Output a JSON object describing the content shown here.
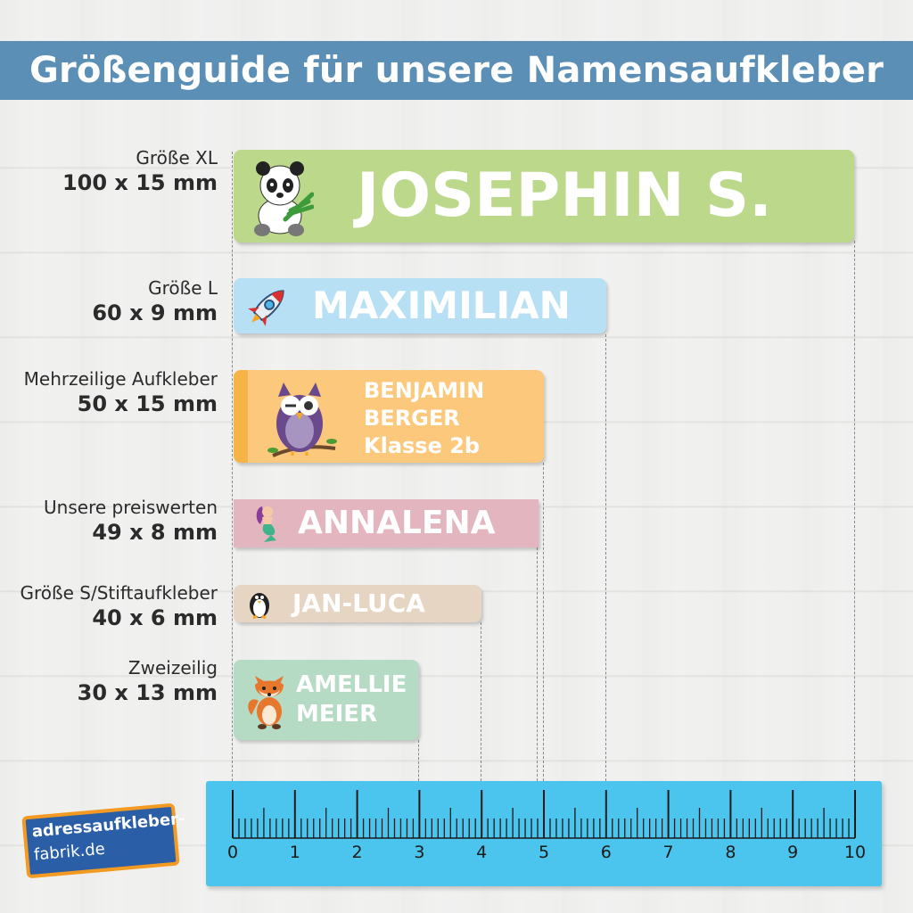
{
  "title": "Größenguide für unsere Namensaufkleber",
  "rows": [
    {
      "name": "Größe XL",
      "dims": "100 x 15 mm",
      "lines": [
        "JOSEPHIN S."
      ],
      "color": "#bcd88a",
      "icon": "panda-icon"
    },
    {
      "name": "Größe L",
      "dims": "60 x 9 mm",
      "lines": [
        "MAXIMILIAN"
      ],
      "color": "#b7e0f5",
      "icon": "rocket-icon"
    },
    {
      "name": "Mehrzeilige Aufkleber",
      "dims": "50 x 15 mm",
      "lines": [
        "BENJAMIN",
        "BERGER",
        "Klasse 2b"
      ],
      "color": "#fcc97c",
      "icon": "owl-icon"
    },
    {
      "name": "Unsere preiswerten",
      "dims": "49 x 8 mm",
      "lines": [
        "ANNALENA"
      ],
      "color": "#e2b5bf",
      "icon": "mermaid-icon"
    },
    {
      "name": "Größe S/Stiftaufkleber",
      "dims": "40 x 6 mm",
      "lines": [
        "JAN-LUCA"
      ],
      "color": "#e6d5c2",
      "icon": "penguin-icon"
    },
    {
      "name": "Zweizeilig",
      "dims": "30 x 13 mm",
      "lines": [
        "AMELLIE",
        "MEIER"
      ],
      "color": "#b5dbc5",
      "icon": "fox-icon"
    }
  ],
  "ruler": {
    "labels": [
      "0",
      "1",
      "2",
      "3",
      "4",
      "5",
      "6",
      "7",
      "8",
      "9",
      "10"
    ],
    "color": "#4cc5ee"
  },
  "logo": {
    "line1": "adressaufkleber-",
    "line2": "fabrik.de"
  }
}
